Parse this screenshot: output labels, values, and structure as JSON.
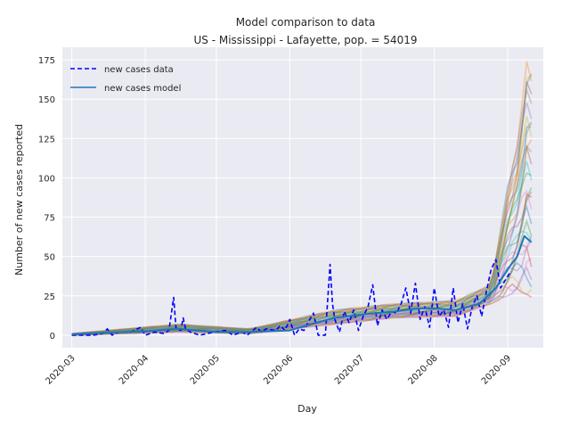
{
  "chart_data": {
    "type": "line",
    "title": "Model comparison to data",
    "subtitle": "US - Mississippi - Lafayette, pop. = 54019",
    "xlabel": "Day",
    "ylabel": "Number of new cases reported",
    "x_range": [
      "2020-02-26",
      "2020-09-16"
    ],
    "ylim": [
      -8,
      183
    ],
    "x_ticks": [
      "2020-03",
      "2020-04",
      "2020-05",
      "2020-06",
      "2020-07",
      "2020-08",
      "2020-09"
    ],
    "y_ticks": [
      0,
      25,
      50,
      75,
      100,
      125,
      150,
      175
    ],
    "grid": true,
    "legend_position": "top-left",
    "legend": [
      {
        "label": "new cases data",
        "style": "dashed",
        "color": "#0000ff"
      },
      {
        "label": "new cases model",
        "style": "solid",
        "color": "#1f77b4"
      }
    ],
    "series": [
      {
        "name": "new cases data",
        "color": "#0000ff",
        "points": [
          [
            "2020-03-01",
            0
          ],
          [
            "2020-03-10",
            0
          ],
          [
            "2020-03-14",
            1
          ],
          [
            "2020-03-16",
            4
          ],
          [
            "2020-03-18",
            0
          ],
          [
            "2020-03-21",
            2
          ],
          [
            "2020-03-26",
            2
          ],
          [
            "2020-03-30",
            5
          ],
          [
            "2020-04-01",
            0
          ],
          [
            "2020-04-05",
            2
          ],
          [
            "2020-04-09",
            1
          ],
          [
            "2020-04-11",
            3
          ],
          [
            "2020-04-13",
            24
          ],
          [
            "2020-04-14",
            4
          ],
          [
            "2020-04-16",
            3
          ],
          [
            "2020-04-17",
            11
          ],
          [
            "2020-04-18",
            4
          ],
          [
            "2020-04-20",
            2
          ],
          [
            "2020-04-24",
            0
          ],
          [
            "2020-04-30",
            2
          ],
          [
            "2020-05-05",
            3
          ],
          [
            "2020-05-08",
            0
          ],
          [
            "2020-05-12",
            2
          ],
          [
            "2020-05-14",
            0
          ],
          [
            "2020-05-18",
            5
          ],
          [
            "2020-05-20",
            2
          ],
          [
            "2020-05-22",
            4
          ],
          [
            "2020-05-26",
            3
          ],
          [
            "2020-05-28",
            6
          ],
          [
            "2020-05-30",
            3
          ],
          [
            "2020-06-01",
            10
          ],
          [
            "2020-06-03",
            0
          ],
          [
            "2020-06-05",
            4
          ],
          [
            "2020-06-07",
            3
          ],
          [
            "2020-06-09",
            9
          ],
          [
            "2020-06-11",
            14
          ],
          [
            "2020-06-13",
            0
          ],
          [
            "2020-06-16",
            0
          ],
          [
            "2020-06-18",
            45
          ],
          [
            "2020-06-19",
            20
          ],
          [
            "2020-06-20",
            10
          ],
          [
            "2020-06-22",
            2
          ],
          [
            "2020-06-24",
            15
          ],
          [
            "2020-06-26",
            8
          ],
          [
            "2020-06-28",
            16
          ],
          [
            "2020-06-30",
            3
          ],
          [
            "2020-07-02",
            12
          ],
          [
            "2020-07-04",
            18
          ],
          [
            "2020-07-06",
            32
          ],
          [
            "2020-07-08",
            6
          ],
          [
            "2020-07-10",
            16
          ],
          [
            "2020-07-12",
            10
          ],
          [
            "2020-07-14",
            15
          ],
          [
            "2020-07-16",
            14
          ],
          [
            "2020-07-18",
            20
          ],
          [
            "2020-07-20",
            30
          ],
          [
            "2020-07-22",
            14
          ],
          [
            "2020-07-24",
            33
          ],
          [
            "2020-07-26",
            10
          ],
          [
            "2020-07-28",
            18
          ],
          [
            "2020-07-30",
            5
          ],
          [
            "2020-08-01",
            30
          ],
          [
            "2020-08-03",
            12
          ],
          [
            "2020-08-05",
            16
          ],
          [
            "2020-08-07",
            5
          ],
          [
            "2020-08-09",
            30
          ],
          [
            "2020-08-11",
            8
          ],
          [
            "2020-08-13",
            20
          ],
          [
            "2020-08-15",
            4
          ],
          [
            "2020-08-17",
            18
          ],
          [
            "2020-08-19",
            25
          ],
          [
            "2020-08-21",
            12
          ],
          [
            "2020-08-23",
            28
          ],
          [
            "2020-08-25",
            42
          ],
          [
            "2020-08-27",
            48
          ],
          [
            "2020-08-29",
            30
          ],
          [
            "2020-08-31",
            35
          ],
          [
            "2020-09-02",
            40
          ]
        ]
      },
      {
        "name": "new cases model",
        "color": "#1f77b4",
        "points": [
          [
            "2020-03-01",
            0.5
          ],
          [
            "2020-03-15",
            1.5
          ],
          [
            "2020-04-01",
            2.5
          ],
          [
            "2020-04-15",
            4
          ],
          [
            "2020-05-01",
            2
          ],
          [
            "2020-05-15",
            2
          ],
          [
            "2020-06-01",
            3
          ],
          [
            "2020-06-10",
            7
          ],
          [
            "2020-06-20",
            11
          ],
          [
            "2020-07-01",
            13
          ],
          [
            "2020-07-15",
            15
          ],
          [
            "2020-07-25",
            17
          ],
          [
            "2020-08-01",
            17
          ],
          [
            "2020-08-10",
            16
          ],
          [
            "2020-08-20",
            20
          ],
          [
            "2020-08-27",
            30
          ],
          [
            "2020-09-01",
            42
          ],
          [
            "2020-09-05",
            50
          ],
          [
            "2020-09-08",
            63
          ],
          [
            "2020-09-11",
            59
          ]
        ]
      }
    ],
    "ensemble_band": {
      "upper": [
        [
          "2020-03-01",
          1
        ],
        [
          "2020-04-15",
          7
        ],
        [
          "2020-05-15",
          4
        ],
        [
          "2020-06-20",
          16
        ],
        [
          "2020-07-15",
          20
        ],
        [
          "2020-08-10",
          22
        ],
        [
          "2020-08-25",
          32
        ],
        [
          "2020-09-01",
          95
        ],
        [
          "2020-09-05",
          120
        ],
        [
          "2020-09-09",
          174
        ],
        [
          "2020-09-11",
          170
        ]
      ],
      "lower": [
        [
          "2020-03-01",
          0
        ],
        [
          "2020-04-15",
          2
        ],
        [
          "2020-05-15",
          1
        ],
        [
          "2020-06-20",
          7
        ],
        [
          "2020-07-15",
          11
        ],
        [
          "2020-08-10",
          12
        ],
        [
          "2020-08-25",
          20
        ],
        [
          "2020-09-01",
          25
        ],
        [
          "2020-09-05",
          28
        ],
        [
          "2020-09-09",
          26
        ],
        [
          "2020-09-11",
          24
        ]
      ]
    }
  }
}
